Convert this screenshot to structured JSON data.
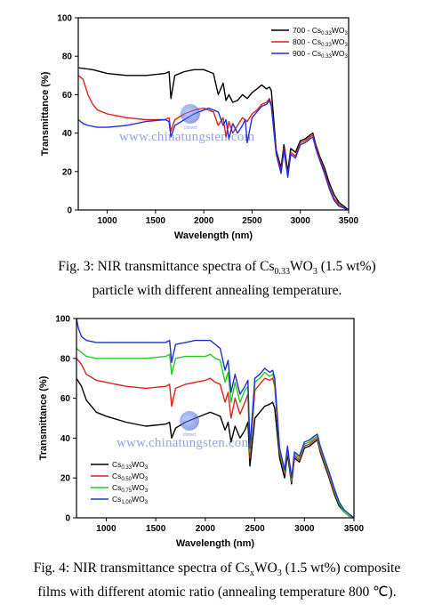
{
  "chart_data": [
    {
      "type": "line",
      "xlabel": "Wavelength (nm)",
      "ylabel": "Transmittance (%)",
      "xlim": [
        700,
        3500
      ],
      "ylim": [
        0,
        100
      ],
      "x_ticks": [
        1000,
        1500,
        2000,
        2500,
        3000,
        3500
      ],
      "y_ticks": [
        0,
        20,
        40,
        60,
        80,
        100
      ],
      "grid": false,
      "legend_position": "top-right",
      "series": [
        {
          "name": "700 - Cs",
          "sub": "0.33",
          "suffix": "WO",
          "suffix_sub": "3",
          "color": "#000000",
          "x": [
            700,
            850,
            1000,
            1200,
            1400,
            1600,
            1640,
            1660,
            1700,
            1800,
            1900,
            2000,
            2050,
            2100,
            2150,
            2200,
            2230,
            2260,
            2300,
            2350,
            2400,
            2450,
            2500,
            2550,
            2600,
            2650,
            2680,
            2700,
            2720,
            2750,
            2800,
            2830,
            2870,
            2900,
            2950,
            3000,
            3050,
            3100,
            3130,
            3160,
            3200,
            3250,
            3300,
            3350,
            3400,
            3450,
            3500
          ],
          "y": [
            74,
            73,
            71,
            70,
            70,
            71,
            72,
            58,
            70,
            72,
            73,
            73,
            72,
            71,
            60,
            66,
            57,
            60,
            56,
            57,
            60,
            58,
            61,
            63,
            65,
            63,
            64,
            62,
            50,
            31,
            22,
            34,
            20,
            32,
            30,
            36,
            37,
            39,
            40,
            34,
            28,
            22,
            14,
            8,
            4,
            2,
            0
          ]
        },
        {
          "name": "800 - Cs",
          "sub": "0.33",
          "suffix": "WO",
          "suffix_sub": "3",
          "color": "#e02020",
          "x": [
            700,
            750,
            800,
            850,
            900,
            1000,
            1200,
            1400,
            1600,
            1640,
            1660,
            1700,
            1800,
            1900,
            2000,
            2050,
            2100,
            2150,
            2200,
            2230,
            2260,
            2300,
            2350,
            2400,
            2450,
            2500,
            2550,
            2600,
            2650,
            2680,
            2700,
            2720,
            2750,
            2800,
            2830,
            2870,
            2900,
            2950,
            3000,
            3050,
            3100,
            3130,
            3160,
            3200,
            3250,
            3300,
            3350,
            3400,
            3450,
            3500
          ],
          "y": [
            70,
            68,
            60,
            55,
            52,
            50,
            48,
            47,
            47,
            48,
            41,
            47,
            50,
            52,
            53,
            52,
            51,
            44,
            48,
            38,
            46,
            40,
            44,
            48,
            46,
            50,
            52,
            55,
            56,
            58,
            55,
            45,
            30,
            20,
            32,
            18,
            30,
            28,
            35,
            36,
            38,
            39,
            33,
            27,
            20,
            12,
            6,
            3,
            1,
            0
          ]
        },
        {
          "name": "900 - Cs",
          "sub": "0.33",
          "suffix": "WO",
          "suffix_sub": "3",
          "color": "#2030d0",
          "x": [
            700,
            750,
            800,
            900,
            1000,
            1200,
            1400,
            1600,
            1640,
            1660,
            1700,
            1800,
            1900,
            2000,
            2050,
            2100,
            2150,
            2200,
            2230,
            2260,
            2300,
            2350,
            2400,
            2430,
            2450,
            2500,
            2550,
            2600,
            2650,
            2680,
            2700,
            2720,
            2750,
            2800,
            2830,
            2870,
            2900,
            2950,
            3000,
            3050,
            3100,
            3130,
            3160,
            3200,
            3250,
            3300,
            3350,
            3400,
            3450,
            3500
          ],
          "y": [
            47,
            45,
            44,
            43,
            43,
            44,
            46,
            47,
            46,
            38,
            44,
            47,
            50,
            52,
            53,
            52,
            51,
            44,
            47,
            37,
            45,
            40,
            44,
            47,
            35,
            48,
            51,
            54,
            55,
            57,
            54,
            44,
            29,
            19,
            31,
            17,
            29,
            27,
            34,
            35,
            37,
            38,
            32,
            26,
            19,
            11,
            5,
            2,
            1,
            0
          ]
        }
      ]
    },
    {
      "type": "line",
      "xlabel": "Wavelength (nm)",
      "ylabel": "Transmittance (%)",
      "xlim": [
        700,
        3500
      ],
      "ylim": [
        0,
        100
      ],
      "x_ticks": [
        1000,
        1500,
        2000,
        2500,
        3000,
        3500
      ],
      "y_ticks": [
        0,
        20,
        40,
        60,
        80,
        100
      ],
      "grid": false,
      "legend_position": "bottom-left",
      "series": [
        {
          "name": "Cs",
          "sub": "0.33",
          "suffix": "WO",
          "suffix_sub": "3",
          "color": "#000000",
          "x": [
            700,
            750,
            800,
            900,
            1000,
            1200,
            1400,
            1600,
            1640,
            1660,
            1700,
            1800,
            1900,
            2000,
            2050,
            2100,
            2150,
            2200,
            2230,
            2260,
            2300,
            2350,
            2400,
            2430,
            2450,
            2500,
            2550,
            2600,
            2650,
            2680,
            2700,
            2720,
            2750,
            2800,
            2830,
            2870,
            2900,
            2950,
            3000,
            3050,
            3100,
            3130,
            3160,
            3200,
            3250,
            3300,
            3350,
            3400,
            3450,
            3500
          ],
          "y": [
            70,
            66,
            59,
            53,
            51,
            48,
            46,
            47,
            48,
            40,
            45,
            48,
            50,
            52,
            53,
            52,
            51,
            44,
            48,
            38,
            46,
            40,
            44,
            48,
            26,
            50,
            53,
            56,
            57,
            58,
            55,
            45,
            30,
            20,
            32,
            17,
            30,
            28,
            35,
            36,
            38,
            39,
            33,
            27,
            20,
            12,
            6,
            3,
            1,
            0
          ]
        },
        {
          "name": "Cs",
          "sub": "0.50",
          "suffix": "WO",
          "suffix_sub": "3",
          "color": "#e02020",
          "x": [
            700,
            750,
            800,
            900,
            1000,
            1200,
            1400,
            1600,
            1640,
            1660,
            1700,
            1800,
            1900,
            2000,
            2050,
            2100,
            2150,
            2200,
            2230,
            2260,
            2300,
            2350,
            2400,
            2430,
            2450,
            2500,
            2550,
            2600,
            2650,
            2680,
            2700,
            2720,
            2750,
            2800,
            2830,
            2870,
            2900,
            2950,
            3000,
            3050,
            3100,
            3130,
            3160,
            3200,
            3250,
            3300,
            3350,
            3400,
            3450,
            3500
          ],
          "y": [
            80,
            77,
            72,
            69,
            68,
            66,
            65,
            66,
            67,
            56,
            65,
            67,
            68,
            69,
            70,
            68,
            67,
            58,
            63,
            50,
            60,
            52,
            58,
            62,
            30,
            64,
            67,
            70,
            69,
            70,
            66,
            52,
            33,
            22,
            34,
            18,
            31,
            29,
            36,
            37,
            39,
            40,
            34,
            28,
            21,
            13,
            7,
            3,
            1,
            0
          ]
        },
        {
          "name": "Cs",
          "sub": "0.75",
          "suffix": "WO",
          "suffix_sub": "3",
          "color": "#22cc22",
          "x": [
            700,
            750,
            800,
            900,
            1000,
            1200,
            1400,
            1600,
            1640,
            1660,
            1700,
            1800,
            1900,
            2000,
            2050,
            2100,
            2150,
            2200,
            2230,
            2260,
            2300,
            2350,
            2400,
            2430,
            2450,
            2500,
            2550,
            2600,
            2650,
            2680,
            2700,
            2720,
            2750,
            2800,
            2830,
            2870,
            2900,
            2950,
            3000,
            3050,
            3100,
            3130,
            3160,
            3200,
            3250,
            3300,
            3350,
            3400,
            3450,
            3500
          ],
          "y": [
            85,
            83,
            81,
            80,
            80,
            80,
            80,
            81,
            82,
            72,
            80,
            81,
            81,
            81,
            82,
            80,
            79,
            68,
            73,
            58,
            68,
            58,
            64,
            66,
            33,
            68,
            70,
            73,
            71,
            72,
            68,
            54,
            34,
            23,
            35,
            19,
            32,
            30,
            37,
            38,
            40,
            41,
            35,
            29,
            22,
            14,
            7,
            3,
            1,
            0
          ]
        },
        {
          "name": "Cs",
          "sub": "1.00",
          "suffix": "WO",
          "suffix_sub": "3",
          "color": "#2030d0",
          "x": [
            700,
            720,
            750,
            800,
            900,
            1000,
            1200,
            1400,
            1600,
            1640,
            1660,
            1700,
            1800,
            1900,
            2000,
            2050,
            2100,
            2150,
            2200,
            2230,
            2260,
            2300,
            2350,
            2400,
            2430,
            2450,
            2500,
            2550,
            2600,
            2650,
            2680,
            2700,
            2720,
            2750,
            2800,
            2830,
            2870,
            2900,
            2950,
            3000,
            3050,
            3100,
            3130,
            3160,
            3200,
            3250,
            3300,
            3350,
            3400,
            3450,
            3500
          ],
          "y": [
            100,
            95,
            91,
            89,
            88,
            88,
            88,
            88,
            88,
            89,
            78,
            87,
            88,
            89,
            89,
            89,
            87,
            85,
            74,
            79,
            63,
            72,
            62,
            66,
            69,
            35,
            70,
            72,
            75,
            73,
            74,
            70,
            56,
            35,
            24,
            36,
            20,
            33,
            31,
            38,
            39,
            41,
            42,
            36,
            30,
            23,
            15,
            8,
            4,
            2,
            0
          ]
        }
      ]
    }
  ],
  "watermark": {
    "text": "www.chinatungsten.com",
    "logo_text": "ctiowd"
  },
  "captions": {
    "fig3": {
      "prefix": "Fig. 3: NIR transmittance spectra of Cs",
      "sub": "0.33",
      "mid": "WO",
      "sub2": "3",
      "suffix": " (1.5 wt%)",
      "line2": "particle with different annealing temperature."
    },
    "fig4": {
      "prefix": "Fig. 4: NIR transmittance spectra of Cs",
      "sub": "x",
      "mid": "WO",
      "sub2": "3",
      "suffix": " (1.5 wt%) composite",
      "line2": "films with different atomic ratio (annealing temperature 800 ℃)."
    }
  }
}
